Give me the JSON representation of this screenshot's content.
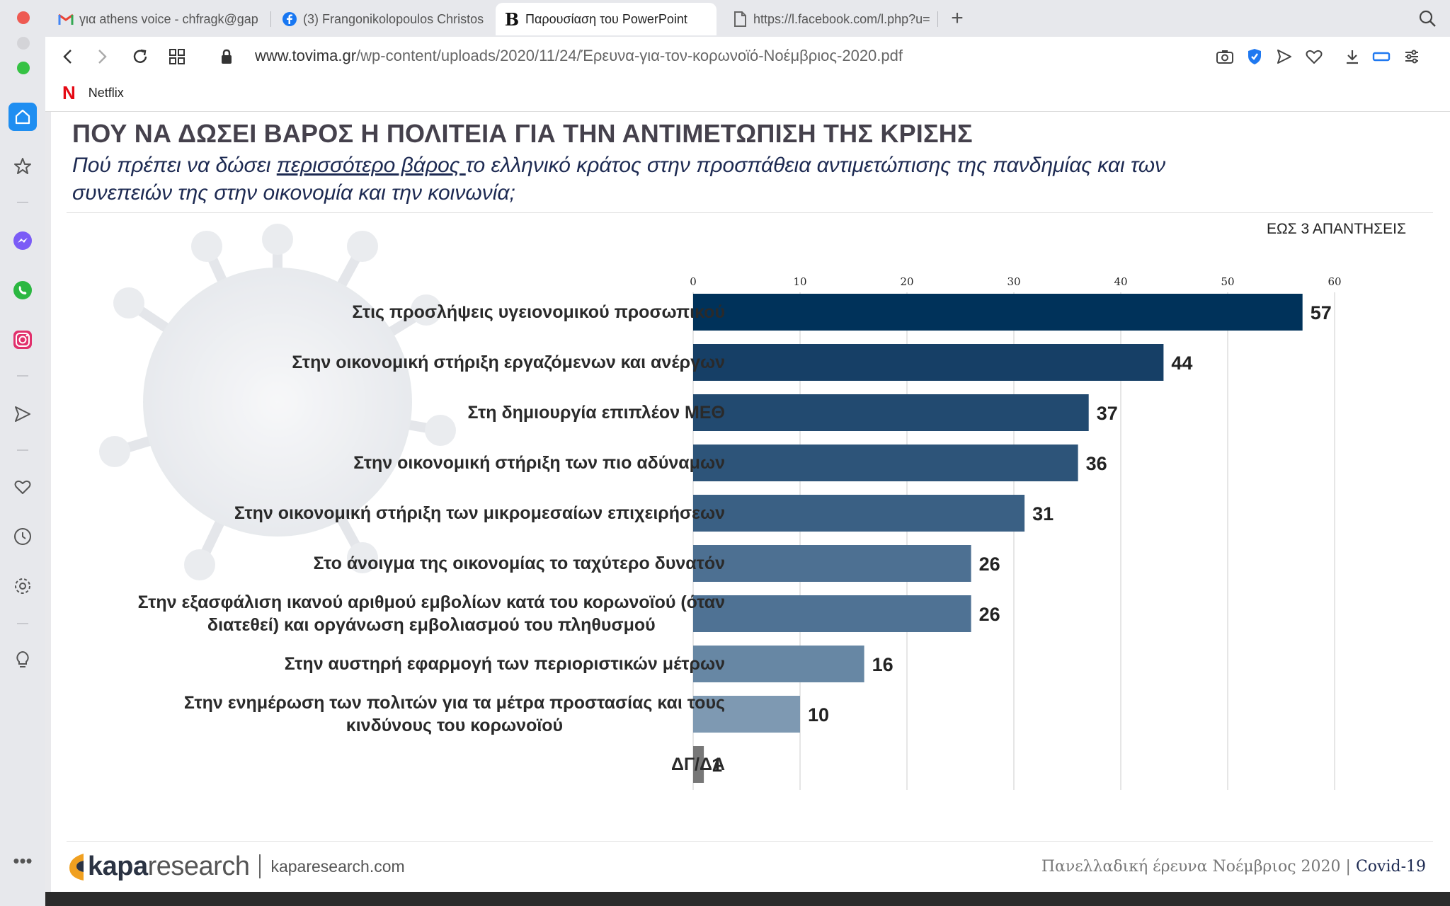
{
  "browser": {
    "tabs": [
      {
        "label": "για athens voice - chfragk@gap",
        "icon": "gmail-icon"
      },
      {
        "label": "(3) Frangonikolopoulos Christos",
        "icon": "facebook-icon"
      },
      {
        "label": "Παρουσίαση του PowerPoint",
        "icon": "b-icon"
      },
      {
        "label": "https://l.facebook.com/l.php?u=",
        "icon": "document-icon"
      }
    ],
    "url_host": "www.tovima.gr",
    "url_path": "/wp-content/uploads/2020/11/24/Έρευνα-για-τον-κορωνοϊό-Νοέμβριος-2020.pdf",
    "bookmark": "Netflix"
  },
  "slide": {
    "title": "ΠΟΥ ΝΑ ΔΩΣΕΙ ΒΑΡΟΣ Η ΠΟΛΙΤΕΙΑ ΓΙΑ ΤΗΝ ΑΝΤΙΜΕΤΩΠΙΣΗ ΤΗΣ ΚΡΙΣΗΣ",
    "question_pre": "Πού πρέπει να δώσει ",
    "question_underlined": "περισσότερο βάρος ",
    "question_post": "το ελληνικό κράτος στην προσπάθεια αντιμετώπισης της πανδημίας και των συνεπειών της στην οικονομία και την κοινωνία;",
    "answers_note": "ΕΩΣ 3 ΑΠΑΝΤΗΣΕΙΣ",
    "footer_brand_bold": "kapa",
    "footer_brand_light": "research",
    "footer_site": "kaparesearch.com",
    "footer_survey": "Πανελλαδική έρευνα Νοέμβριος 2020 |",
    "footer_covid": "Covid-19"
  },
  "chart_data": {
    "type": "bar",
    "orientation": "horizontal",
    "title": "ΠΟΥ ΝΑ ΔΩΣΕΙ ΒΑΡΟΣ Η ΠΟΛΙΤΕΙΑ ΓΙΑ ΤΗΝ ΑΝΤΙΜΕΤΩΠΙΣΗ ΤΗΣ ΚΡΙΣΗΣ",
    "categories": [
      "Στις προσλήψεις υγειονομικού προσωπικού",
      "Στην οικονομική στήριξη εργαζόμενων και ανέργων",
      "Στη δημιουργία επιπλέον ΜΕΘ",
      "Στην οικονομική στήριξη των πιο αδύναμων",
      "Στην οικονομική στήριξη των μικρομεσαίων επιχειρήσεων",
      "Στο άνοιγμα της οικονομίας το ταχύτερο δυνατόν",
      "Στην εξασφάλιση ικανού αριθμού εμβολίων κατά του κορωνοϊού (όταν\nδιατεθεί) και οργάνωση εμβολιασμού του πληθυσμού",
      "Στην αυστηρή εφαρμογή των περιοριστικών μέτρων",
      "Στην ενημέρωση των πολιτών για τα μέτρα προστασίας και τους\nκινδύνους του κορωνοϊού",
      "ΔΓ/ΔΑ"
    ],
    "values": [
      57,
      44,
      37,
      36,
      31,
      26,
      26,
      16,
      10,
      1
    ],
    "colors": [
      "#00325a",
      "#163f66",
      "#224a70",
      "#2d5479",
      "#3a6084",
      "#4d7092",
      "#4f7294",
      "#6787a4",
      "#7e99b2",
      "#777777"
    ],
    "xlim": [
      0,
      60
    ],
    "xticks": [
      0,
      10,
      20,
      30,
      40,
      50,
      60
    ],
    "grid": true
  }
}
